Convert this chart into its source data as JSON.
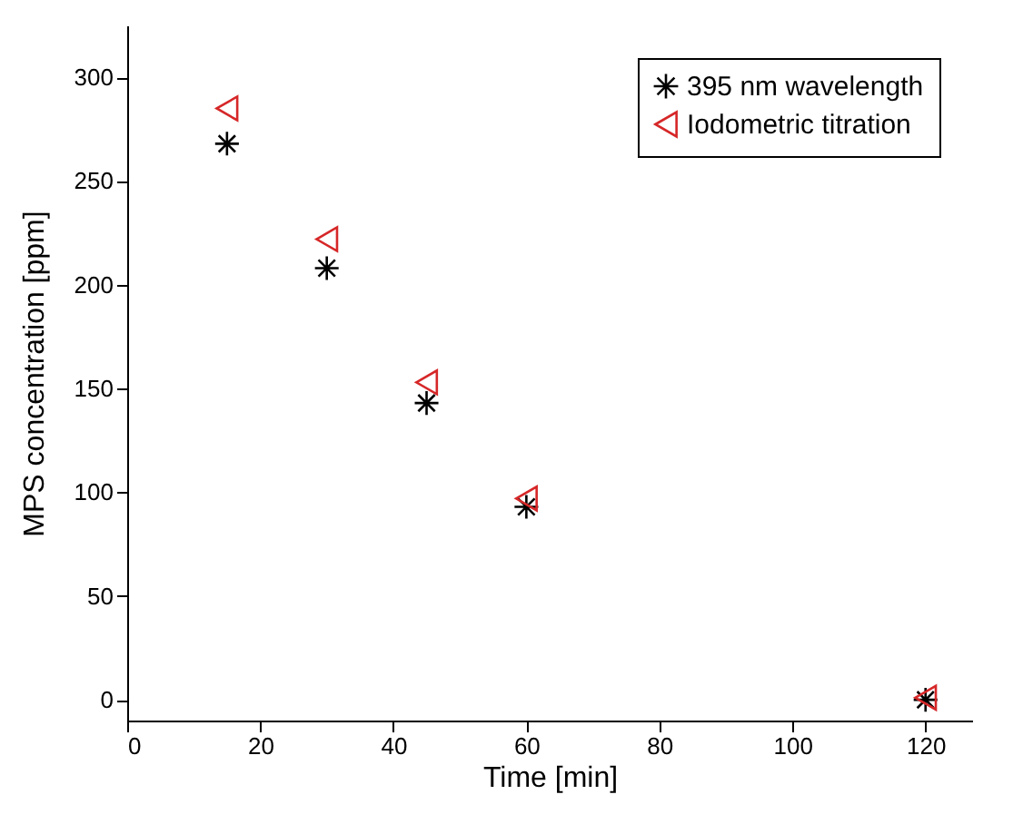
{
  "chart_data": {
    "type": "scatter",
    "xlabel": "Time [min]",
    "ylabel": "MPS concentration [ppm]",
    "x": [
      15,
      30,
      45,
      60,
      120
    ],
    "series": [
      {
        "name": "395 nm wavelength",
        "color": "#000000",
        "marker": "cross",
        "values": [
          268,
          208,
          143,
          93,
          0
        ]
      },
      {
        "name": "Iodometric titration",
        "color": "#d62728",
        "marker": "triangle",
        "values": [
          285,
          222,
          153,
          97,
          1
        ]
      }
    ],
    "xlim": [
      0,
      127
    ],
    "ylim": [
      -10,
      325
    ],
    "xticks": [
      0,
      20,
      40,
      60,
      80,
      100,
      120
    ],
    "yticks": [
      0,
      50,
      100,
      150,
      200,
      250,
      300
    ],
    "legend": "top right",
    "grid": false
  }
}
